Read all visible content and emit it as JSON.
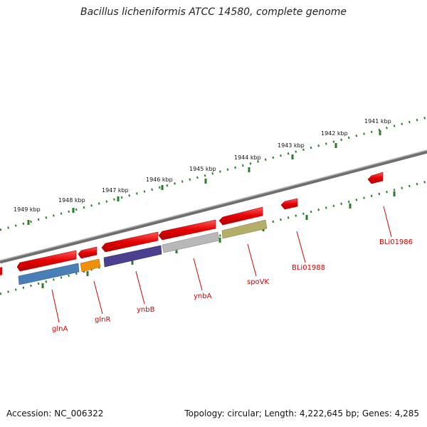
{
  "title": "Bacillus licheniformis ATCC 14580, complete genome",
  "footer": {
    "accession": "Accession: NC_006322",
    "summary": "Topology: circular; Length: 4,222,645 bp; Genes: 4,285"
  },
  "kbp_labels": [
    "1941 kbp",
    "1942 kbp",
    "1943 kbp",
    "1944 kbp",
    "1945 kbp",
    "1946 kbp",
    "1947 kbp",
    "1948 kbp",
    "1949 kbp"
  ],
  "genes": [
    {
      "name": "glnA",
      "color": "#4a7eb7"
    },
    {
      "name": "glnR",
      "color": "#f0900a"
    },
    {
      "name": "ynbB",
      "color": "#4b3f8f"
    },
    {
      "name": "ynbA",
      "color": "#b8b8b8"
    },
    {
      "name": "spoVK",
      "color": "#b5ad6a"
    },
    {
      "name": "BLi01988",
      "color": "#e40000"
    },
    {
      "name": "BLi01986",
      "color": "#e40000"
    }
  ],
  "colors": {
    "forward_strand_gene": "#e40000",
    "backbone": "#808080",
    "tick": "#2a7d2a"
  }
}
